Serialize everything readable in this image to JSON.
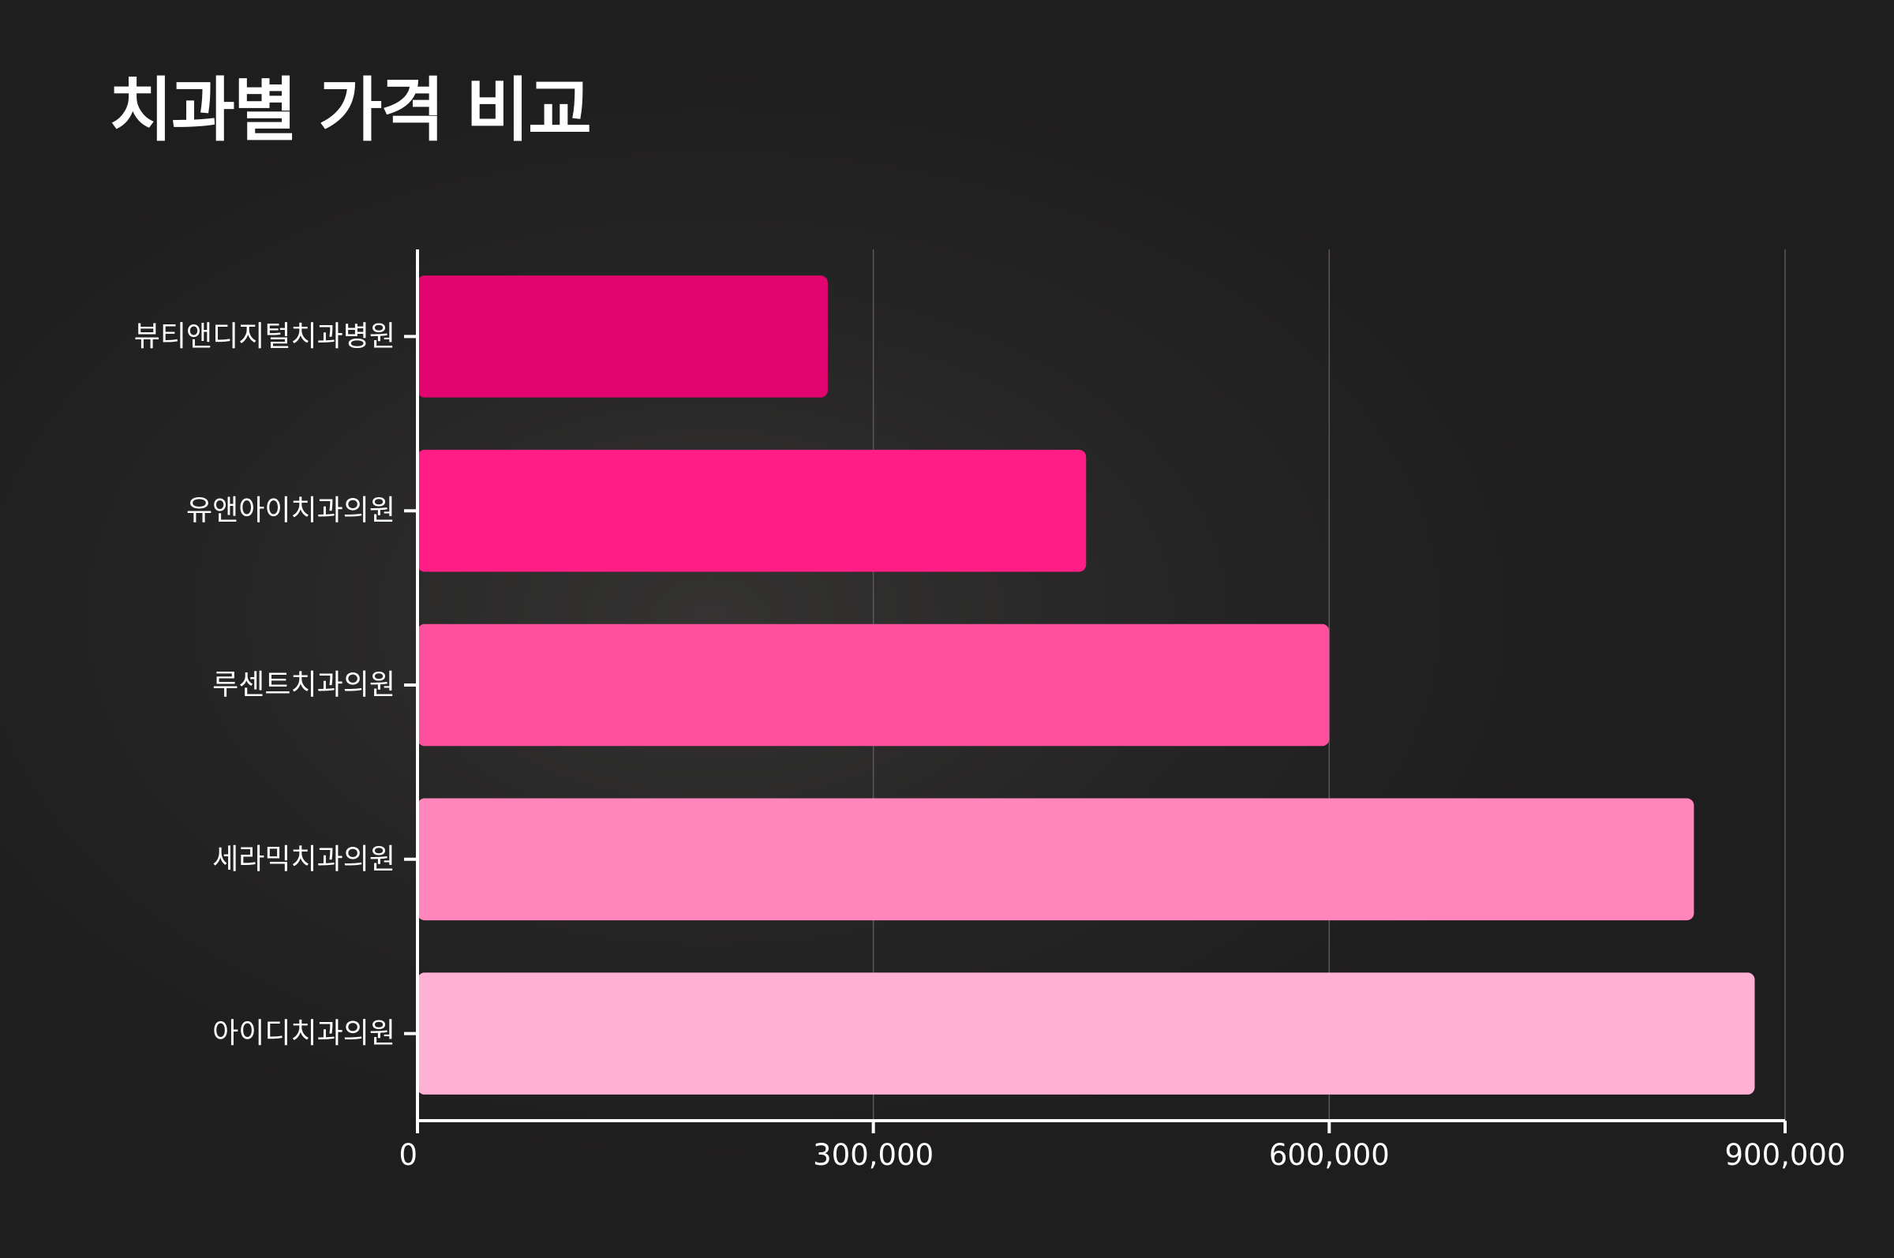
{
  "chart_data": {
    "type": "bar",
    "orientation": "horizontal",
    "title": "치과별 가격 비교",
    "xlabel": "",
    "ylabel": "",
    "categories": [
      "뷰티앤디지털치과병원",
      "유앤아이치과의원",
      "루센트치과의원",
      "세라믹치과의원",
      "아이디치과의원"
    ],
    "values": [
      270000,
      440000,
      600000,
      840000,
      880000
    ],
    "colors": [
      "#e2046f",
      "#ff1d86",
      "#ff509d",
      "#ff85ba",
      "#ffb1d3"
    ],
    "xlim": [
      0,
      900000
    ],
    "xticks": [
      0,
      300000,
      600000,
      900000
    ],
    "xtick_labels": [
      "0",
      "300,000",
      "600,000",
      "900,000"
    ],
    "grid": "vertical",
    "legend": "none"
  }
}
